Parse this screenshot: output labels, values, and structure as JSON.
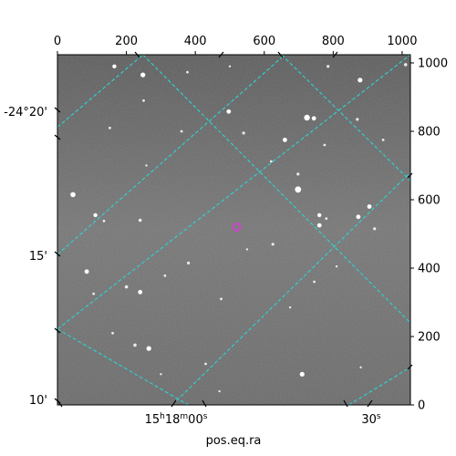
{
  "figure": {
    "background_color": "#ffffff",
    "image_background_color": "#6e6e6e",
    "grid_color": "#2fd3d3",
    "marker_color": "#d63fd6"
  },
  "chart_data": {
    "type": "scatter",
    "title": "",
    "xlabel": "pos.eq.ra",
    "ylabel": "",
    "pixel_axes": {
      "x_range": [
        0,
        1024
      ],
      "y_range": [
        0,
        1024
      ],
      "top_ticks": [
        "0",
        "200",
        "400",
        "600",
        "800",
        "1000"
      ],
      "right_ticks": [
        "0",
        "200",
        "400",
        "600",
        "800",
        "1000"
      ]
    },
    "world_axes": {
      "ra_tick_labels": [
        {
          "h": "15",
          "hsup": "h",
          "m": "18",
          "msup": "m",
          "s": "00",
          "ssup": "s"
        },
        {
          "h": "",
          "hsup": "",
          "m": "",
          "msup": "",
          "s": "30",
          "ssup": "s"
        }
      ],
      "dec_tick_labels": [
        "-24°20'",
        "15'",
        "10'"
      ]
    },
    "grid": true,
    "marker": {
      "x": 520,
      "y": 520,
      "shape": "circle"
    }
  },
  "stars": [
    {
      "x": 165,
      "y": 990,
      "r": 2.2
    },
    {
      "x": 248,
      "y": 965,
      "r": 2.6
    },
    {
      "x": 377,
      "y": 973,
      "r": 1.4
    },
    {
      "x": 500,
      "y": 990,
      "r": 1.2
    },
    {
      "x": 785,
      "y": 990,
      "r": 1.6
    },
    {
      "x": 878,
      "y": 950,
      "r": 2.6
    },
    {
      "x": 1010,
      "y": 995,
      "r": 1.8
    },
    {
      "x": 250,
      "y": 890,
      "r": 1.4
    },
    {
      "x": 497,
      "y": 858,
      "r": 2.4
    },
    {
      "x": 724,
      "y": 840,
      "r": 3.2
    },
    {
      "x": 744,
      "y": 838,
      "r": 2.4
    },
    {
      "x": 870,
      "y": 835,
      "r": 1.6
    },
    {
      "x": 152,
      "y": 810,
      "r": 1.4
    },
    {
      "x": 360,
      "y": 800,
      "r": 1.4
    },
    {
      "x": 540,
      "y": 795,
      "r": 1.6
    },
    {
      "x": 660,
      "y": 775,
      "r": 2.4
    },
    {
      "x": 775,
      "y": 760,
      "r": 1.4
    },
    {
      "x": 945,
      "y": 775,
      "r": 1.4
    },
    {
      "x": 258,
      "y": 700,
      "r": 1.2
    },
    {
      "x": 620,
      "y": 712,
      "r": 1.4
    },
    {
      "x": 698,
      "y": 675,
      "r": 1.6
    },
    {
      "x": 698,
      "y": 630,
      "r": 3.4
    },
    {
      "x": 45,
      "y": 615,
      "r": 2.8
    },
    {
      "x": 110,
      "y": 555,
      "r": 2.2
    },
    {
      "x": 135,
      "y": 538,
      "r": 1.4
    },
    {
      "x": 240,
      "y": 540,
      "r": 1.8
    },
    {
      "x": 760,
      "y": 555,
      "r": 2.2
    },
    {
      "x": 780,
      "y": 545,
      "r": 1.4
    },
    {
      "x": 873,
      "y": 550,
      "r": 2.4
    },
    {
      "x": 905,
      "y": 580,
      "r": 2.4
    },
    {
      "x": 920,
      "y": 515,
      "r": 1.6
    },
    {
      "x": 760,
      "y": 525,
      "r": 2.4
    },
    {
      "x": 625,
      "y": 470,
      "r": 1.6
    },
    {
      "x": 550,
      "y": 455,
      "r": 1.2
    },
    {
      "x": 380,
      "y": 415,
      "r": 1.6
    },
    {
      "x": 312,
      "y": 378,
      "r": 1.4
    },
    {
      "x": 85,
      "y": 390,
      "r": 2.4
    },
    {
      "x": 200,
      "y": 345,
      "r": 1.8
    },
    {
      "x": 240,
      "y": 330,
      "r": 2.4
    },
    {
      "x": 105,
      "y": 325,
      "r": 1.4
    },
    {
      "x": 475,
      "y": 310,
      "r": 1.4
    },
    {
      "x": 745,
      "y": 360,
      "r": 1.4
    },
    {
      "x": 810,
      "y": 405,
      "r": 1.2
    },
    {
      "x": 675,
      "y": 285,
      "r": 1.2
    },
    {
      "x": 160,
      "y": 210,
      "r": 1.4
    },
    {
      "x": 265,
      "y": 165,
      "r": 2.6
    },
    {
      "x": 225,
      "y": 175,
      "r": 1.8
    },
    {
      "x": 430,
      "y": 120,
      "r": 1.4
    },
    {
      "x": 710,
      "y": 90,
      "r": 2.6
    },
    {
      "x": 470,
      "y": 40,
      "r": 1.2
    },
    {
      "x": 300,
      "y": 90,
      "r": 1.2
    },
    {
      "x": 880,
      "y": 110,
      "r": 1.2
    }
  ]
}
